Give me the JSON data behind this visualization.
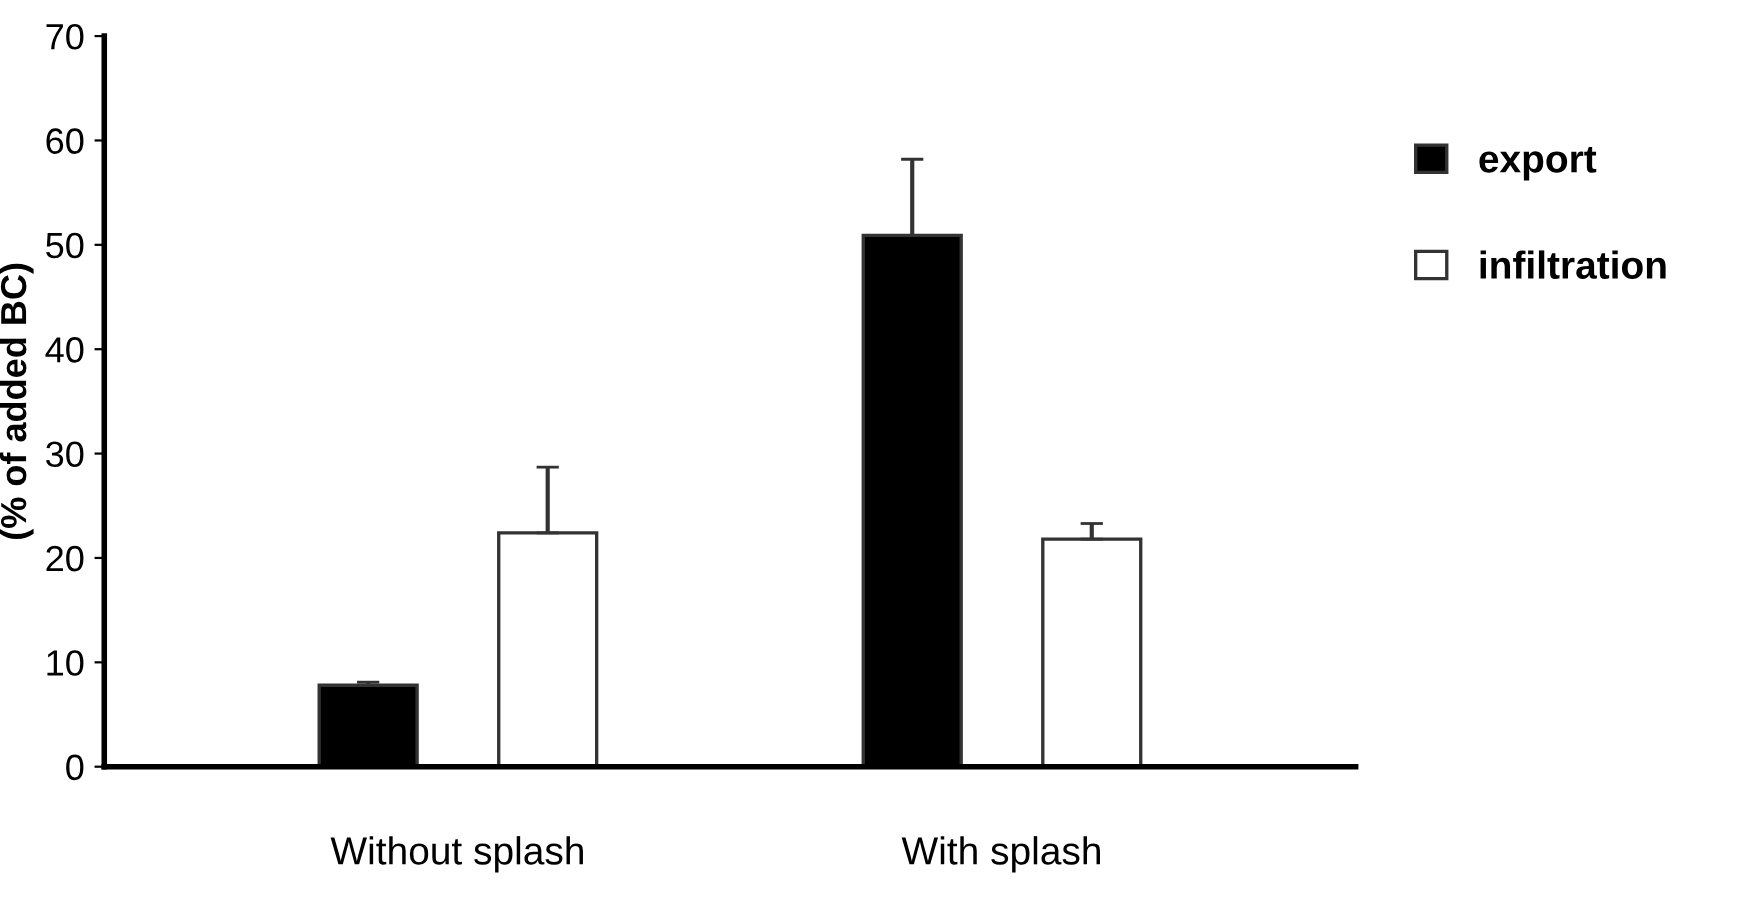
{
  "chart_data": {
    "type": "bar",
    "ylabel": "(% of added BC)",
    "categories": [
      "Without splash",
      "With splash"
    ],
    "series": [
      {
        "name": "export",
        "color": "#000000",
        "values": [
          7.8,
          50.9
        ],
        "errors": [
          [
            7.8,
            8.1
          ],
          [
            50.9,
            58.2
          ]
        ]
      },
      {
        "name": "infiltration",
        "color": "#ffffff",
        "values": [
          22.4,
          21.8
        ],
        "errors": [
          [
            22.4,
            28.7
          ],
          [
            21.8,
            23.3
          ]
        ]
      }
    ],
    "ylim": [
      0,
      70
    ],
    "yticks": [
      0,
      10,
      20,
      30,
      40,
      50,
      60,
      70
    ],
    "grid": false,
    "legend": "right"
  }
}
